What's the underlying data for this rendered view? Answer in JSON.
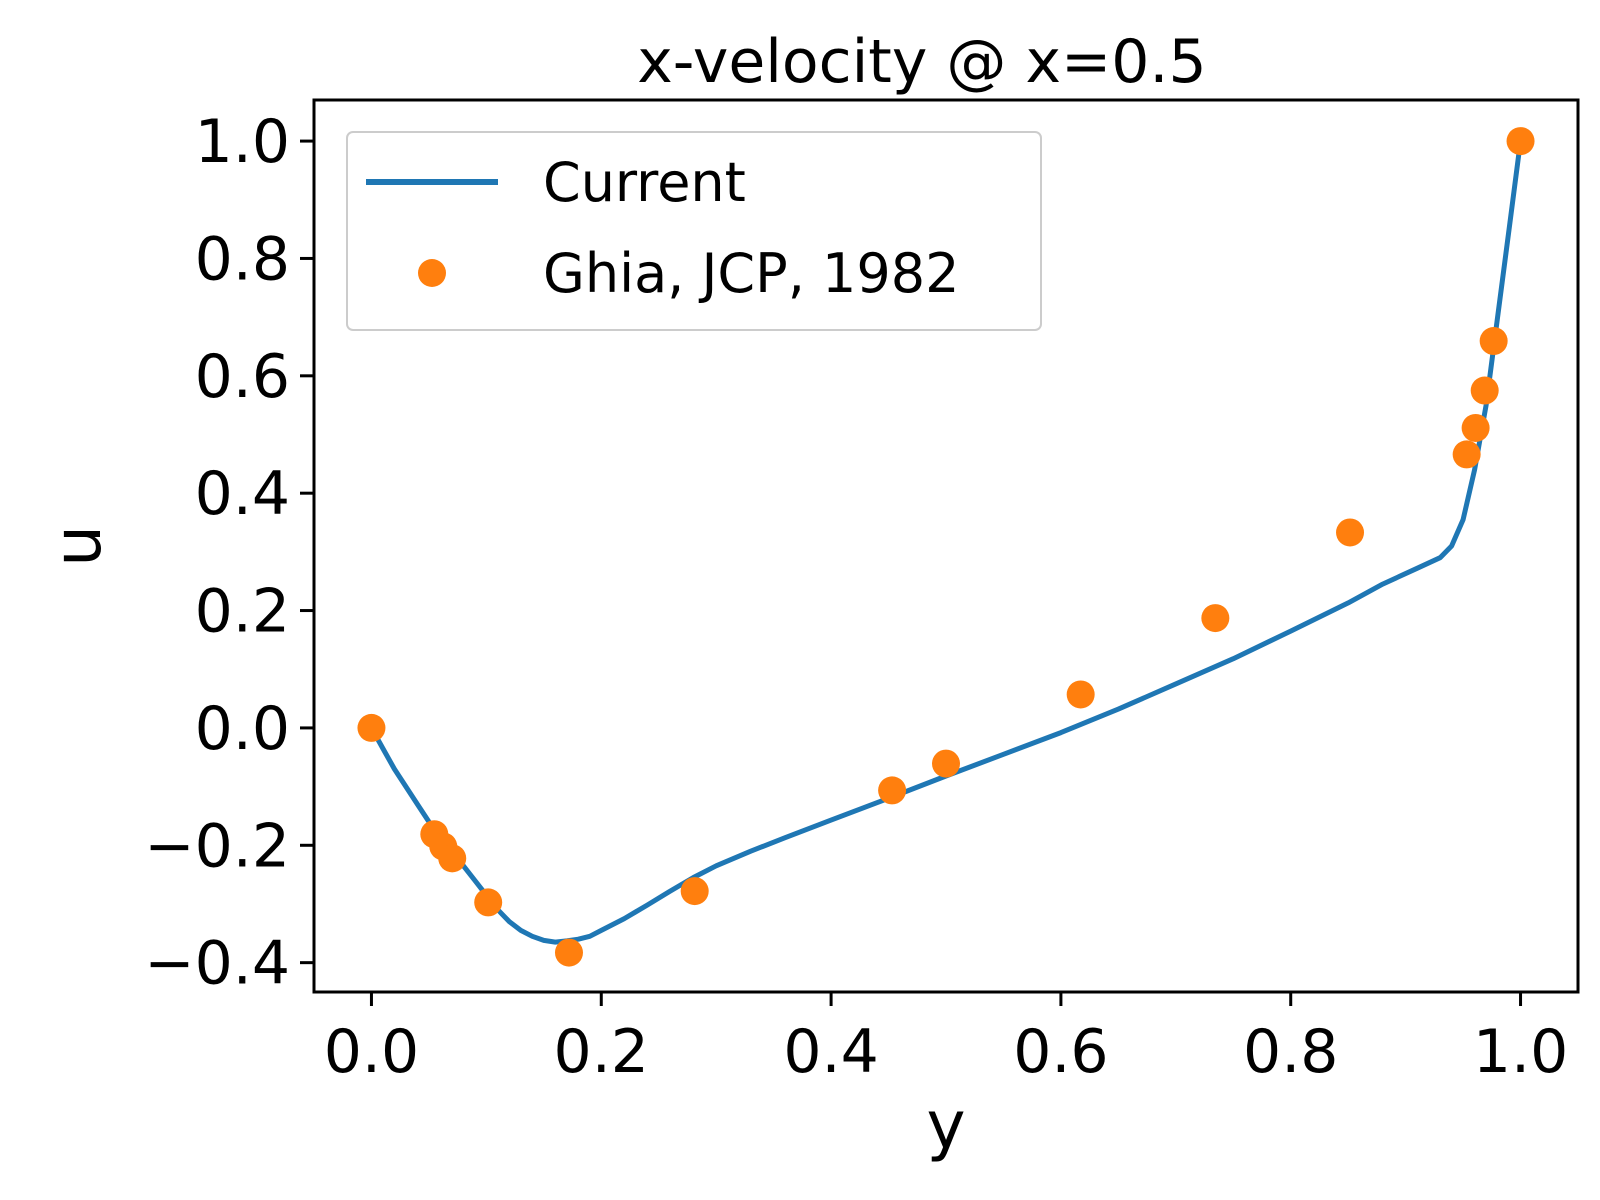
{
  "chart_data": {
    "type": "line",
    "title": "x-velocity @ x=0.5",
    "xlabel": "y",
    "ylabel": "u",
    "xlim": [
      -0.05,
      1.05
    ],
    "ylim": [
      -0.45,
      1.07
    ],
    "xticks": [
      0.0,
      0.2,
      0.4,
      0.6,
      0.8,
      1.0
    ],
    "xtick_labels": [
      "0.0",
      "0.2",
      "0.4",
      "0.6",
      "0.8",
      "1.0"
    ],
    "yticks": [
      -0.4,
      -0.2,
      0.0,
      0.2,
      0.4,
      0.6,
      0.8,
      1.0
    ],
    "ytick_labels": [
      "−0.4",
      "−0.2",
      "0.0",
      "0.2",
      "0.4",
      "0.6",
      "0.8",
      "1.0"
    ],
    "grid": false,
    "legend_position": "upper-left",
    "series": [
      {
        "name": "Current",
        "kind": "line",
        "color": "#1f77b4",
        "x": [
          0.0,
          0.01,
          0.02,
          0.03,
          0.04,
          0.05,
          0.06,
          0.07,
          0.08,
          0.09,
          0.1,
          0.11,
          0.12,
          0.13,
          0.14,
          0.15,
          0.16,
          0.17,
          0.18,
          0.19,
          0.2,
          0.22,
          0.24,
          0.26,
          0.28,
          0.3,
          0.33,
          0.36,
          0.4,
          0.45,
          0.5,
          0.55,
          0.6,
          0.65,
          0.7,
          0.75,
          0.8,
          0.85,
          0.88,
          0.91,
          0.93,
          0.94,
          0.95,
          0.96,
          0.97,
          0.98,
          0.99,
          1.0
        ],
        "y": [
          0.0,
          -0.035,
          -0.07,
          -0.1,
          -0.13,
          -0.16,
          -0.185,
          -0.21,
          -0.235,
          -0.26,
          -0.285,
          -0.31,
          -0.33,
          -0.345,
          -0.355,
          -0.362,
          -0.365,
          -0.363,
          -0.36,
          -0.355,
          -0.345,
          -0.325,
          -0.302,
          -0.278,
          -0.255,
          -0.235,
          -0.21,
          -0.187,
          -0.157,
          -0.12,
          -0.082,
          -0.045,
          -0.008,
          0.032,
          0.075,
          0.118,
          0.165,
          0.213,
          0.245,
          0.272,
          0.29,
          0.31,
          0.355,
          0.44,
          0.55,
          0.7,
          0.85,
          1.0
        ]
      },
      {
        "name": "Ghia, JCP, 1982",
        "kind": "scatter",
        "color": "#ff7f0e",
        "x": [
          0.0,
          0.0547,
          0.0625,
          0.0703,
          0.1016,
          0.1719,
          0.2813,
          0.4531,
          0.5,
          0.6172,
          0.7344,
          0.8516,
          0.9531,
          0.9609,
          0.9688,
          0.9766,
          1.0
        ],
        "y": [
          0.0,
          -0.18109,
          -0.20196,
          -0.2222,
          -0.2973,
          -0.38289,
          -0.27805,
          -0.10648,
          -0.0608,
          0.05702,
          0.18719,
          0.33304,
          0.46604,
          0.51117,
          0.57492,
          0.65928,
          1.0
        ]
      }
    ]
  }
}
